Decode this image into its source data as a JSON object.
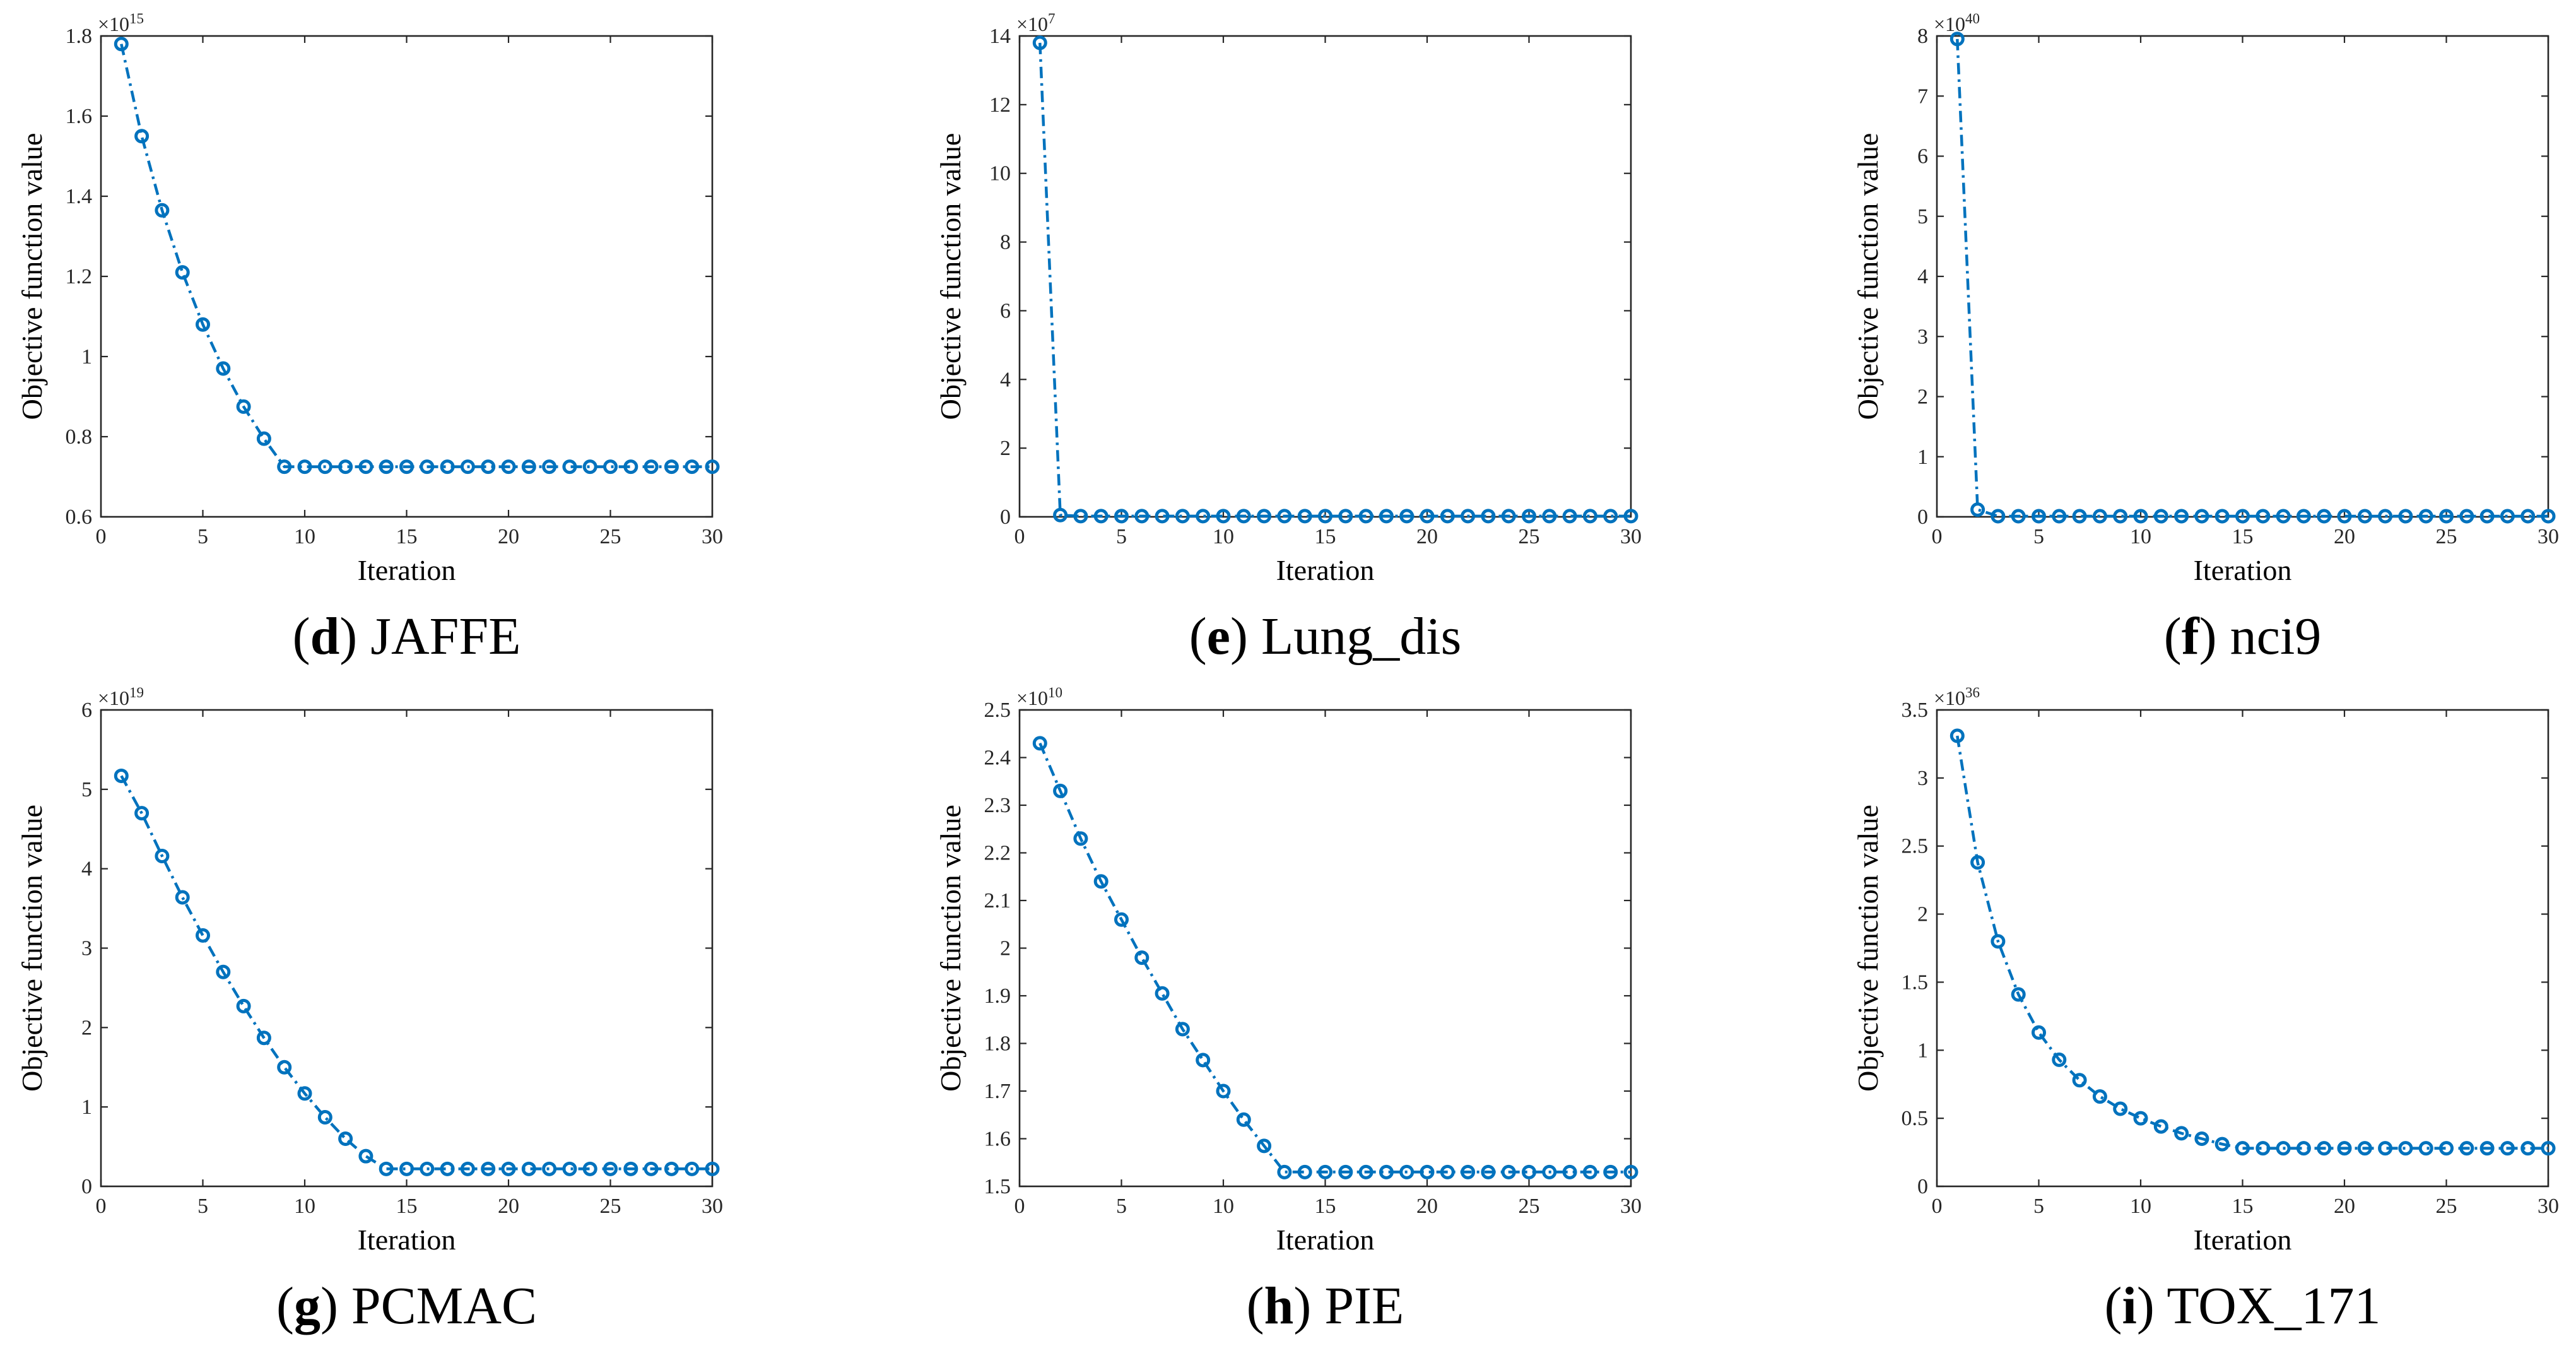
{
  "colors": {
    "series": "#0072BD",
    "axis": "#262626"
  },
  "chart_data": [
    {
      "type": "line",
      "label": "d",
      "caption": "JAFFE",
      "xlabel": "Iteration",
      "ylabel": "Objective function value",
      "xlim": [
        0,
        30
      ],
      "ylim": [
        0.6,
        1.8
      ],
      "xticks": [
        "0",
        "5",
        "10",
        "15",
        "20",
        "25",
        "30"
      ],
      "yticks": [
        "0.6",
        "0.8",
        "1",
        "1.2",
        "1.4",
        "1.6",
        "1.8"
      ],
      "exponent": "15",
      "x": [
        1,
        2,
        3,
        4,
        5,
        6,
        7,
        8,
        9,
        10,
        11,
        12,
        13,
        14,
        15,
        16,
        17,
        18,
        19,
        20,
        21,
        22,
        23,
        24,
        25,
        26,
        27,
        28,
        29,
        30
      ],
      "values": [
        1.78,
        1.55,
        1.365,
        1.21,
        1.08,
        0.97,
        0.875,
        0.795,
        0.725,
        0.725,
        0.725,
        0.725,
        0.725,
        0.725,
        0.725,
        0.725,
        0.725,
        0.725,
        0.725,
        0.725,
        0.725,
        0.725,
        0.725,
        0.725,
        0.725,
        0.725,
        0.725,
        0.725,
        0.725,
        0.725
      ]
    },
    {
      "type": "line",
      "label": "e",
      "caption": "Lung_dis",
      "xlabel": "Iteration",
      "ylabel": "Objective function value",
      "xlim": [
        0,
        30
      ],
      "ylim": [
        0,
        14
      ],
      "xticks": [
        "0",
        "5",
        "10",
        "15",
        "20",
        "25",
        "30"
      ],
      "yticks": [
        "0",
        "2",
        "4",
        "6",
        "8",
        "10",
        "12",
        "14"
      ],
      "exponent": "7",
      "x": [
        1,
        2,
        3,
        4,
        5,
        6,
        7,
        8,
        9,
        10,
        11,
        12,
        13,
        14,
        15,
        16,
        17,
        18,
        19,
        20,
        21,
        22,
        23,
        24,
        25,
        26,
        27,
        28,
        29,
        30
      ],
      "values": [
        13.8,
        0.05,
        0.02,
        0.02,
        0.02,
        0.02,
        0.02,
        0.02,
        0.02,
        0.02,
        0.02,
        0.02,
        0.02,
        0.02,
        0.02,
        0.02,
        0.02,
        0.02,
        0.02,
        0.02,
        0.02,
        0.02,
        0.02,
        0.02,
        0.02,
        0.02,
        0.02,
        0.02,
        0.02,
        0.02
      ]
    },
    {
      "type": "line",
      "label": "f",
      "caption": "nci9",
      "xlabel": "Iteration",
      "ylabel": "Objective function value",
      "xlim": [
        0,
        30
      ],
      "ylim": [
        0,
        8
      ],
      "xticks": [
        "0",
        "5",
        "10",
        "15",
        "20",
        "25",
        "30"
      ],
      "yticks": [
        "0",
        "1",
        "2",
        "3",
        "4",
        "5",
        "6",
        "7",
        "8"
      ],
      "exponent": "40",
      "x": [
        1,
        2,
        3,
        4,
        5,
        6,
        7,
        8,
        9,
        10,
        11,
        12,
        13,
        14,
        15,
        16,
        17,
        18,
        19,
        20,
        21,
        22,
        23,
        24,
        25,
        26,
        27,
        28,
        29,
        30
      ],
      "values": [
        7.95,
        0.12,
        0.01,
        0.01,
        0.01,
        0.01,
        0.01,
        0.01,
        0.01,
        0.01,
        0.01,
        0.01,
        0.01,
        0.01,
        0.01,
        0.01,
        0.01,
        0.01,
        0.01,
        0.01,
        0.01,
        0.01,
        0.01,
        0.01,
        0.01,
        0.01,
        0.01,
        0.01,
        0.01,
        0.01
      ]
    },
    {
      "type": "line",
      "label": "g",
      "caption": "PCMAC",
      "xlabel": "Iteration",
      "ylabel": "Objective function value",
      "xlim": [
        0,
        30
      ],
      "ylim": [
        0,
        6
      ],
      "xticks": [
        "0",
        "5",
        "10",
        "15",
        "20",
        "25",
        "30"
      ],
      "yticks": [
        "0",
        "1",
        "2",
        "3",
        "4",
        "5",
        "6"
      ],
      "exponent": "19",
      "x": [
        1,
        2,
        3,
        4,
        5,
        6,
        7,
        8,
        9,
        10,
        11,
        12,
        13,
        14,
        15,
        16,
        17,
        18,
        19,
        20,
        21,
        22,
        23,
        24,
        25,
        26,
        27,
        28,
        29,
        30
      ],
      "values": [
        5.17,
        4.7,
        4.16,
        3.64,
        3.16,
        2.7,
        2.27,
        1.87,
        1.5,
        1.17,
        0.87,
        0.6,
        0.38,
        0.22,
        0.22,
        0.22,
        0.22,
        0.22,
        0.22,
        0.22,
        0.22,
        0.22,
        0.22,
        0.22,
        0.22,
        0.22,
        0.22,
        0.22,
        0.22,
        0.22
      ]
    },
    {
      "type": "line",
      "label": "h",
      "caption": "PIE",
      "xlabel": "Iteration",
      "ylabel": "Objective function value",
      "xlim": [
        0,
        30
      ],
      "ylim": [
        1.5,
        2.5
      ],
      "xticks": [
        "0",
        "5",
        "10",
        "15",
        "20",
        "25",
        "30"
      ],
      "yticks": [
        "1.5",
        "1.6",
        "1.7",
        "1.8",
        "1.9",
        "2",
        "2.1",
        "2.2",
        "2.3",
        "2.4",
        "2.5"
      ],
      "exponent": "10",
      "x": [
        1,
        2,
        3,
        4,
        5,
        6,
        7,
        8,
        9,
        10,
        11,
        12,
        13,
        14,
        15,
        16,
        17,
        18,
        19,
        20,
        21,
        22,
        23,
        24,
        25,
        26,
        27,
        28,
        29,
        30
      ],
      "values": [
        2.43,
        2.33,
        2.23,
        2.14,
        2.06,
        1.98,
        1.905,
        1.83,
        1.765,
        1.7,
        1.64,
        1.585,
        1.53,
        1.53,
        1.53,
        1.53,
        1.53,
        1.53,
        1.53,
        1.53,
        1.53,
        1.53,
        1.53,
        1.53,
        1.53,
        1.53,
        1.53,
        1.53,
        1.53,
        1.53
      ]
    },
    {
      "type": "line",
      "label": "i",
      "caption": "TOX_171",
      "xlabel": "Iteration",
      "ylabel": "Objective function value",
      "xlim": [
        0,
        30
      ],
      "ylim": [
        0,
        3.5
      ],
      "xticks": [
        "0",
        "5",
        "10",
        "15",
        "20",
        "25",
        "30"
      ],
      "yticks": [
        "0",
        "0.5",
        "1",
        "1.5",
        "2",
        "2.5",
        "3",
        "3.5"
      ],
      "exponent": "36",
      "x": [
        1,
        2,
        3,
        4,
        5,
        6,
        7,
        8,
        9,
        10,
        11,
        12,
        13,
        14,
        15,
        16,
        17,
        18,
        19,
        20,
        21,
        22,
        23,
        24,
        25,
        26,
        27,
        28,
        29,
        30
      ],
      "values": [
        3.31,
        2.38,
        1.8,
        1.41,
        1.13,
        0.93,
        0.78,
        0.66,
        0.57,
        0.5,
        0.44,
        0.39,
        0.35,
        0.31,
        0.28,
        0.28,
        0.28,
        0.28,
        0.28,
        0.28,
        0.28,
        0.28,
        0.28,
        0.28,
        0.28,
        0.28,
        0.28,
        0.28,
        0.28,
        0.28
      ]
    }
  ]
}
